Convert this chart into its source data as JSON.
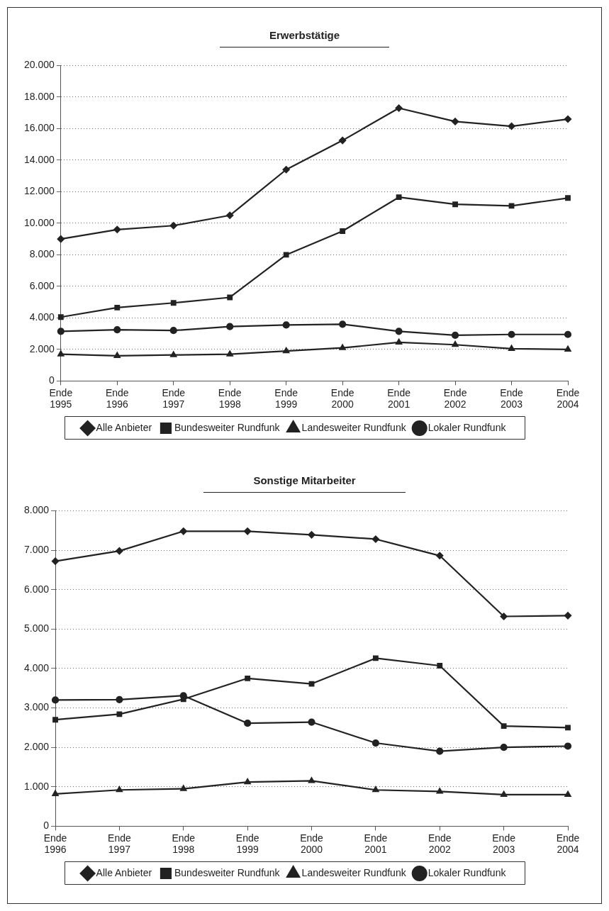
{
  "chart_data": [
    {
      "type": "line",
      "title": "Erwerbstätige",
      "categories": [
        "Ende 1995",
        "Ende 1996",
        "Ende 1997",
        "Ende 1998",
        "Ende 1999",
        "Ende 2000",
        "Ende 2001",
        "Ende 2002",
        "Ende 2003",
        "Ende 2004"
      ],
      "series": [
        {
          "name": "Alle Anbieter",
          "color": "#222222",
          "marker": "diamond",
          "values": [
            9000,
            9600,
            9850,
            10500,
            13400,
            15250,
            17300,
            16450,
            16150,
            16600
          ]
        },
        {
          "name": "Bundesweiter Rundfunk",
          "color": "#222222",
          "marker": "square",
          "values": [
            4050,
            4650,
            4950,
            5300,
            8000,
            9500,
            11650,
            11200,
            11100,
            11600
          ]
        },
        {
          "name": "Landesweiter Rundfunk",
          "color": "#222222",
          "marker": "triangle",
          "values": [
            1700,
            1600,
            1650,
            1700,
            1900,
            2100,
            2450,
            2300,
            2050,
            2000
          ]
        },
        {
          "name": "Lokaler Rundfunk",
          "color": "#222222",
          "marker": "circle",
          "values": [
            3150,
            3250,
            3200,
            3450,
            3550,
            3600,
            3150,
            2900,
            2950,
            2950
          ]
        }
      ],
      "ylim": [
        0,
        20000
      ],
      "yticks": [
        {
          "value": 0,
          "label": "0"
        },
        {
          "value": 2000,
          "label": "2.000"
        },
        {
          "value": 4000,
          "label": "4.000"
        },
        {
          "value": 6000,
          "label": "6.000"
        },
        {
          "value": 8000,
          "label": "8.000"
        },
        {
          "value": 10000,
          "label": "10.000"
        },
        {
          "value": 12000,
          "label": "12.000"
        },
        {
          "value": 14000,
          "label": "14.000"
        },
        {
          "value": 16000,
          "label": "16.000"
        },
        {
          "value": 18000,
          "label": "18.000"
        },
        {
          "value": 20000,
          "label": "20.000"
        }
      ],
      "grid": "y",
      "legend": "bottom",
      "line_style": "solid"
    },
    {
      "type": "line",
      "title": "Sonstige Mitarbeiter",
      "categories": [
        "Ende 1996",
        "Ende 1997",
        "Ende 1998",
        "Ende 1999",
        "Ende 2000",
        "Ende 2001",
        "Ende 2002",
        "Ende 2003",
        "Ende 2004"
      ],
      "series": [
        {
          "name": "Alle Anbieter",
          "color": "#222222",
          "marker": "diamond",
          "values": [
            6720,
            6980,
            7480,
            7480,
            7390,
            7280,
            6860,
            5320,
            5340
          ]
        },
        {
          "name": "Bundesweiter Rundfunk",
          "color": "#222222",
          "marker": "square",
          "values": [
            2700,
            2840,
            3220,
            3750,
            3610,
            4260,
            4070,
            2540,
            2500
          ]
        },
        {
          "name": "Landesweiter Rundfunk",
          "color": "#222222",
          "marker": "triangle",
          "values": [
            820,
            920,
            950,
            1120,
            1150,
            920,
            880,
            800,
            800
          ]
        },
        {
          "name": "Lokaler Rundfunk",
          "color": "#222222",
          "marker": "circle",
          "values": [
            3200,
            3210,
            3310,
            2610,
            2640,
            2110,
            1900,
            2000,
            2030
          ]
        }
      ],
      "ylim": [
        0,
        8000
      ],
      "yticks": [
        {
          "value": 0,
          "label": "0"
        },
        {
          "value": 1000,
          "label": "1.000"
        },
        {
          "value": 2000,
          "label": "2.000"
        },
        {
          "value": 3000,
          "label": "3.000"
        },
        {
          "value": 4000,
          "label": "4.000"
        },
        {
          "value": 5000,
          "label": "5.000"
        },
        {
          "value": 6000,
          "label": "6.000"
        },
        {
          "value": 7000,
          "label": "7.000"
        },
        {
          "value": 8000,
          "label": "8.000"
        }
      ],
      "grid": "y",
      "legend": "bottom",
      "line_style": "solid"
    }
  ]
}
